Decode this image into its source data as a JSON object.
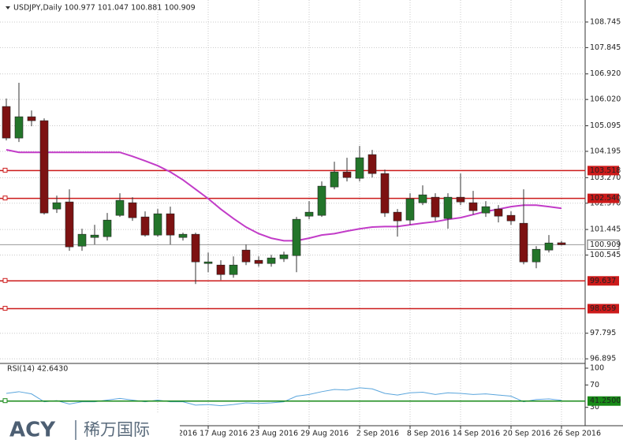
{
  "chart_data": {
    "type": "candlestick",
    "title": "USDJPY,Daily 100.977 101.047 100.881 100.909",
    "categories": [
      null,
      null,
      null,
      null,
      null,
      null,
      null,
      null,
      null,
      null,
      null,
      null,
      "2016",
      null,
      null,
      null,
      "17 Aug 2016",
      null,
      null,
      null,
      "23 Aug 2016",
      null,
      null,
      null,
      "29 Aug 2016",
      null,
      null,
      null,
      "2 Sep 2016",
      null,
      null,
      null,
      "8 Sep 2016",
      null,
      null,
      null,
      "14 Sep 2016",
      null,
      null,
      null,
      "20 Sep 2016",
      null,
      null,
      null,
      "26 Sep 2016"
    ],
    "open": [
      105.773,
      104.663,
      105.412,
      105.274,
      102.165,
      102.415,
      100.86,
      101.166,
      101.194,
      101.943,
      102.387,
      101.887,
      101.249,
      101.998,
      101.166,
      101.277,
      100.249,
      100.194,
      99.861,
      100.722,
      100.361,
      100.249,
      100.416,
      100.527,
      101.915,
      101.943,
      102.942,
      103.469,
      103.247,
      104.08,
      103.414,
      102.054,
      101.776,
      102.387,
      102.581,
      101.832,
      102.581,
      102.387,
      102.026,
      102.165,
      101.943,
      101.665,
      100.305,
      100.722,
      100.977
    ],
    "high": [
      106.051,
      106.606,
      105.634,
      105.357,
      102.637,
      102.859,
      101.471,
      101.61,
      102.026,
      102.72,
      102.581,
      102.082,
      102.165,
      102.248,
      101.332,
      101.332,
      100.638,
      100.361,
      100.499,
      100.916,
      100.499,
      100.555,
      100.666,
      101.887,
      102.442,
      103.136,
      103.83,
      103.969,
      104.385,
      104.247,
      103.553,
      102.165,
      102.72,
      102.998,
      102.72,
      102.72,
      103.414,
      102.803,
      102.442,
      102.304,
      102.082,
      102.859,
      100.86,
      101.249,
      101.047
    ],
    "low": [
      104.58,
      104.524,
      105.079,
      101.971,
      102.026,
      100.694,
      100.694,
      100.916,
      101.055,
      101.887,
      101.749,
      101.194,
      101.194,
      100.916,
      101.055,
      99.528,
      99.944,
      99.667,
      99.75,
      100.194,
      100.138,
      100.138,
      100.305,
      99.944,
      101.804,
      101.887,
      102.859,
      103.136,
      103.136,
      103.275,
      101.887,
      101.194,
      101.61,
      102.304,
      101.749,
      101.471,
      102.304,
      101.971,
      101.887,
      101.693,
      101.61,
      100.222,
      100.083,
      100.638,
      100.881
    ],
    "close": [
      104.663,
      105.412,
      105.274,
      102.026,
      102.387,
      100.833,
      101.277,
      101.249,
      101.776,
      102.47,
      101.86,
      101.249,
      101.998,
      101.249,
      101.277,
      100.305,
      100.305,
      99.861,
      100.194,
      100.305,
      100.249,
      100.444,
      100.555,
      101.804,
      102.054,
      102.97,
      103.469,
      103.275,
      103.969,
      103.414,
      102.026,
      101.749,
      102.526,
      102.664,
      101.887,
      102.581,
      102.415,
      102.109,
      102.248,
      101.915,
      101.749,
      100.305,
      100.749,
      100.971,
      100.909
    ],
    "up_color": "#23752a",
    "down_color": "#7d1212",
    "ylim": [
      96.76,
      109.52
    ],
    "yticks": [
      108.745,
      107.845,
      {
        "value": 106.92,
        "label": "106.920"
      },
      {
        "value": 106.02,
        "label": "106.020"
      },
      105.095,
      104.195,
      {
        "value": 103.27,
        "label": "103.270"
      },
      {
        "value": 102.37,
        "label": "102.370"
      },
      101.445,
      100.545,
      97.795,
      96.895
    ],
    "grid": true,
    "ma": {
      "color": "#c23cc8",
      "values": [
        104.25,
        104.16,
        104.16,
        104.16,
        104.16,
        104.16,
        104.16,
        104.16,
        104.16,
        104.16,
        104.02,
        103.86,
        103.69,
        103.47,
        103.19,
        102.86,
        102.53,
        102.16,
        101.83,
        101.53,
        101.3,
        101.14,
        101.05,
        101.05,
        101.14,
        101.25,
        101.3,
        101.39,
        101.47,
        101.53,
        101.55,
        101.55,
        101.61,
        101.67,
        101.72,
        101.8,
        101.86,
        101.97,
        102.08,
        102.16,
        102.25,
        102.3,
        102.3,
        102.25,
        102.19
      ]
    },
    "levels": {
      "color": "#cc1a1a",
      "values": [
        103.518,
        102.54,
        99.637,
        98.659
      ],
      "value_labels": [
        "103.518",
        "102.540",
        "99.637",
        "98.659"
      ]
    },
    "rsi": {
      "title": "RSI(14) 42.6430",
      "ylim": [
        0,
        100
      ],
      "yticks": [
        100,
        70,
        30
      ],
      "color": "#5aa5dc",
      "values": [
        55,
        58,
        54,
        40,
        42,
        36,
        40,
        40,
        43,
        46,
        43,
        40,
        43,
        40,
        40,
        34,
        35,
        33,
        35,
        38,
        37,
        38,
        40,
        50,
        53,
        58,
        62,
        61,
        65,
        63,
        55,
        52,
        56,
        57,
        53,
        56,
        55,
        53,
        54,
        52,
        50,
        40,
        44,
        45,
        42.643
      ],
      "level": 41.25,
      "level_label": "41.2500",
      "level_color": "#178a17"
    },
    "logo": {
      "brand": "ACY",
      "name": "稀万国际"
    }
  }
}
